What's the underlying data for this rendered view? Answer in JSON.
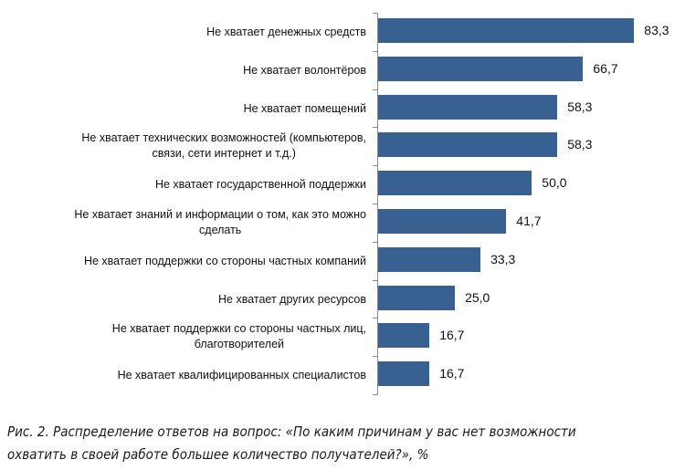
{
  "chart_data": {
    "type": "bar",
    "orientation": "horizontal",
    "title": "",
    "xlabel": "",
    "ylabel": "",
    "xlim": [
      0,
      100
    ],
    "grid": false,
    "legend": null,
    "bar_color": "#386090",
    "categories": [
      "Не хватает денежных средств",
      "Не хватает волонтёров",
      "Не хватает помещений",
      "Не хватает технических возможностей (компьютеров, связи, сети интернет и т.д.)",
      "Не хватает государственной поддержки",
      "Не хватает знаний и информации о том, как это можно сделать",
      "Не хватает поддержки со стороны частных компаний",
      "Не хватает других ресурсов",
      "Не хватает поддержки со стороны частных лиц, благотворителей",
      "Не хватает квалифицированных специалистов"
    ],
    "values": [
      83.3,
      66.7,
      58.3,
      58.3,
      50.0,
      41.7,
      33.3,
      25.0,
      16.7,
      16.7
    ],
    "value_labels": [
      "83,3",
      "66,7",
      "58,3",
      "58,3",
      "50,0",
      "41,7",
      "33,3",
      "25,0",
      "16,7",
      "16,7"
    ]
  },
  "rows": [
    {
      "lines": [
        "Не хватает денежных средств"
      ],
      "value": "83,3"
    },
    {
      "lines": [
        "Не хватает волонтёров"
      ],
      "value": "66,7"
    },
    {
      "lines": [
        "Не хватает помещений"
      ],
      "value": "58,3"
    },
    {
      "lines": [
        "Не хватает технических возможностей (компьютеров,",
        "связи, сети интернет и т.д.)"
      ],
      "value": "58,3"
    },
    {
      "lines": [
        "Не хватает государственной поддержки"
      ],
      "value": "50,0"
    },
    {
      "lines": [
        "Не хватает знаний и информации о том, как это можно",
        "сделать"
      ],
      "value": "41,7"
    },
    {
      "lines": [
        "Не хватает поддержки со стороны частных компаний"
      ],
      "value": "33,3"
    },
    {
      "lines": [
        "Не хватает других ресурсов"
      ],
      "value": "25,0"
    },
    {
      "lines": [
        "Не хватает поддержки со стороны частных лиц,",
        "благотворителей"
      ],
      "value": "16,7"
    },
    {
      "lines": [
        "Не хватает квалифицированных специалистов"
      ],
      "value": "16,7"
    }
  ],
  "caption": {
    "line1": "Рис. 2. Распределение ответов на вопрос: «По каким причинам у вас нет возможности",
    "line2": "охватить в своей работе большее количество получателей?», %"
  }
}
